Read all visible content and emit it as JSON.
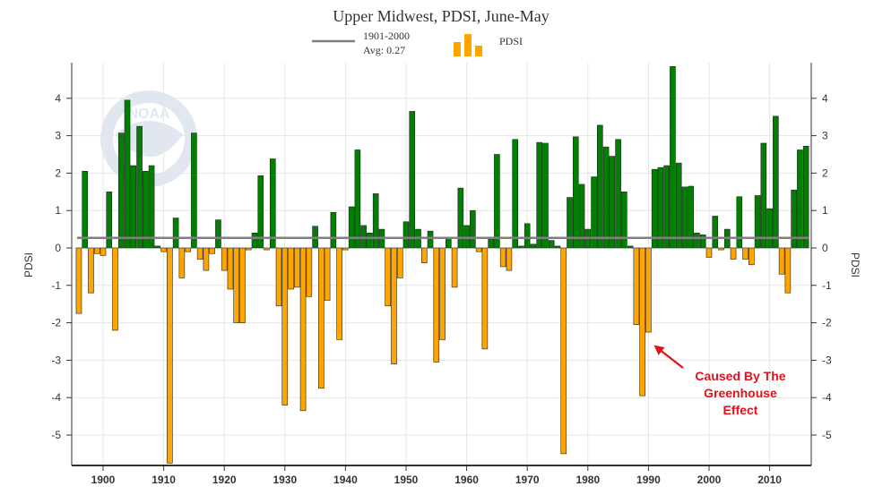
{
  "chart_data": {
    "type": "bar",
    "title": "Upper Midwest, PDSI, June-May",
    "ylabel_left": "PDSI",
    "ylabel_right": "PDSI",
    "ylim": [
      -5.7,
      4.9
    ],
    "yticks": [
      4,
      3,
      2,
      1,
      0,
      -1,
      -2,
      -3,
      -4,
      -5
    ],
    "xlim": [
      1895,
      2017
    ],
    "xticks": [
      1900,
      1910,
      1920,
      1930,
      1940,
      1950,
      1960,
      1970,
      1980,
      1990,
      2000,
      2010
    ],
    "grid": true,
    "legend": {
      "placement": "top-center",
      "average_line_label_1": "1901-2000",
      "average_line_label_2": "Avg: 0.27",
      "bars_label": "PDSI"
    },
    "average": 0.27,
    "colors": {
      "positive": "#008000",
      "negative": "#ffa500",
      "average_line": "#7f7f7f",
      "annotation": "#e3101c"
    },
    "annotation": {
      "lines": [
        "Caused By The",
        "Greenhouse",
        "Effect"
      ],
      "target_year": 1990,
      "target_value": -2.6
    },
    "years": [
      1896,
      1897,
      1898,
      1899,
      1900,
      1901,
      1902,
      1903,
      1904,
      1905,
      1906,
      1907,
      1908,
      1909,
      1910,
      1911,
      1912,
      1913,
      1914,
      1915,
      1916,
      1917,
      1918,
      1919,
      1920,
      1921,
      1922,
      1923,
      1924,
      1925,
      1926,
      1927,
      1928,
      1929,
      1930,
      1931,
      1932,
      1933,
      1934,
      1935,
      1936,
      1937,
      1938,
      1939,
      1940,
      1941,
      1942,
      1943,
      1944,
      1945,
      1946,
      1947,
      1948,
      1949,
      1950,
      1951,
      1952,
      1953,
      1954,
      1955,
      1956,
      1957,
      1958,
      1959,
      1960,
      1961,
      1962,
      1963,
      1964,
      1965,
      1966,
      1967,
      1968,
      1969,
      1970,
      1971,
      1972,
      1973,
      1974,
      1975,
      1976,
      1977,
      1978,
      1979,
      1980,
      1981,
      1982,
      1983,
      1984,
      1985,
      1986,
      1987,
      1988,
      1989,
      1990,
      1991,
      1992,
      1993,
      1994,
      1995,
      1996,
      1997,
      1998,
      1999,
      2000,
      2001,
      2002,
      2003,
      2004,
      2005,
      2006,
      2007,
      2008,
      2009,
      2010,
      2011,
      2012,
      2013,
      2014,
      2015,
      2016
    ],
    "values": [
      -1.75,
      2.05,
      -1.2,
      -0.15,
      -0.2,
      1.5,
      -2.2,
      3.07,
      3.95,
      2.2,
      3.25,
      2.05,
      2.2,
      0.05,
      -0.1,
      -5.75,
      0.8,
      -0.8,
      -0.1,
      3.07,
      -0.3,
      -0.6,
      -0.15,
      0.75,
      -0.6,
      -1.1,
      -2.0,
      -2.0,
      -0.05,
      0.4,
      1.93,
      -0.05,
      2.38,
      -1.55,
      -4.2,
      -1.1,
      -1.05,
      -4.35,
      -1.3,
      0.58,
      -3.75,
      -1.4,
      0.95,
      -2.45,
      -0.05,
      1.1,
      2.62,
      0.6,
      0.4,
      1.45,
      0.5,
      -1.55,
      -3.1,
      -0.8,
      0.7,
      3.65,
      0.5,
      -0.4,
      0.45,
      -3.05,
      -2.45,
      0.25,
      -1.05,
      1.6,
      0.6,
      1.0,
      -0.1,
      -2.7,
      0.25,
      2.5,
      -0.5,
      -0.6,
      2.9,
      0.05,
      0.65,
      0.1,
      2.82,
      2.8,
      0.2,
      0.05,
      -5.5,
      1.35,
      2.97,
      1.7,
      0.5,
      1.9,
      3.28,
      2.7,
      2.45,
      2.9,
      1.5,
      0.05,
      -2.05,
      -3.95,
      -2.25,
      2.1,
      2.15,
      2.2,
      4.85,
      2.27,
      1.63,
      1.65,
      0.4,
      0.35,
      -0.25,
      0.85,
      -0.05,
      0.5,
      -0.3,
      1.37,
      -0.3,
      -0.45,
      1.4,
      2.8,
      1.05,
      3.52,
      -0.7,
      -1.2,
      1.55,
      2.62,
      2.72
    ]
  }
}
